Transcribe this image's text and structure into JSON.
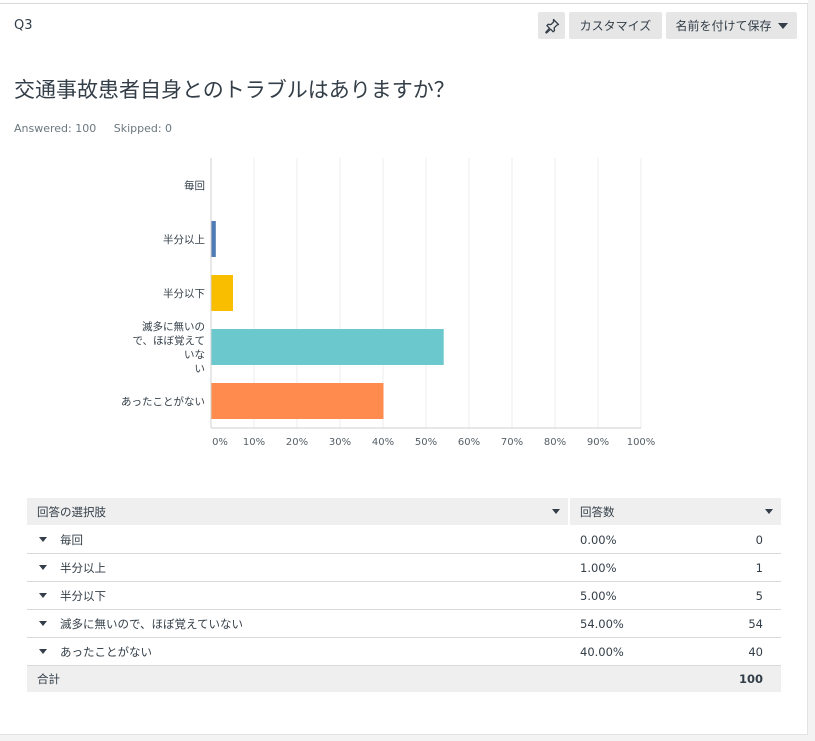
{
  "question": {
    "number": "Q3",
    "title": "交通事故患者自身とのトラブルはありますか？",
    "answered": "Answered: 100",
    "skipped": "Skipped: 0"
  },
  "toolbar": {
    "pin_icon": "pin-icon",
    "customize_label": "カスタマイズ",
    "save_label": "名前を付けて保存"
  },
  "chart_data": {
    "type": "bar",
    "orientation": "horizontal",
    "categories": [
      "毎回",
      "半分以上",
      "半分以下",
      "滅多に無いので、ほぼ覚えていない",
      "あったことがない"
    ],
    "category_lines": [
      [
        "毎回"
      ],
      [
        "半分以上"
      ],
      [
        "半分以下"
      ],
      [
        "滅多に無いの",
        "で、ほぼ覚えて",
        "いな",
        "い"
      ],
      [
        "あったことがない"
      ]
    ],
    "values": [
      0,
      1,
      5,
      54,
      40
    ],
    "colors": [
      "#6a95c8",
      "#507cb6",
      "#f9be00",
      "#6bc8cd",
      "#ff8b4f"
    ],
    "xlim": [
      0,
      100
    ],
    "ticks": [
      "0%",
      "10%",
      "20%",
      "30%",
      "40%",
      "50%",
      "60%",
      "70%",
      "80%",
      "90%",
      "100%"
    ],
    "grid": true,
    "title": "",
    "xlabel": "",
    "ylabel": ""
  },
  "table": {
    "headers": [
      "回答の選択肢",
      "回答数"
    ],
    "rows": [
      {
        "label": "毎回",
        "percent": "0.00%",
        "count": "0"
      },
      {
        "label": "半分以上",
        "percent": "1.00%",
        "count": "1"
      },
      {
        "label": "半分以下",
        "percent": "5.00%",
        "count": "5"
      },
      {
        "label": "滅多に無いので、ほぼ覚えていない",
        "percent": "54.00%",
        "count": "54"
      },
      {
        "label": "あったことがない",
        "percent": "40.00%",
        "count": "40"
      }
    ],
    "total_label": "合計",
    "total_count": "100"
  }
}
